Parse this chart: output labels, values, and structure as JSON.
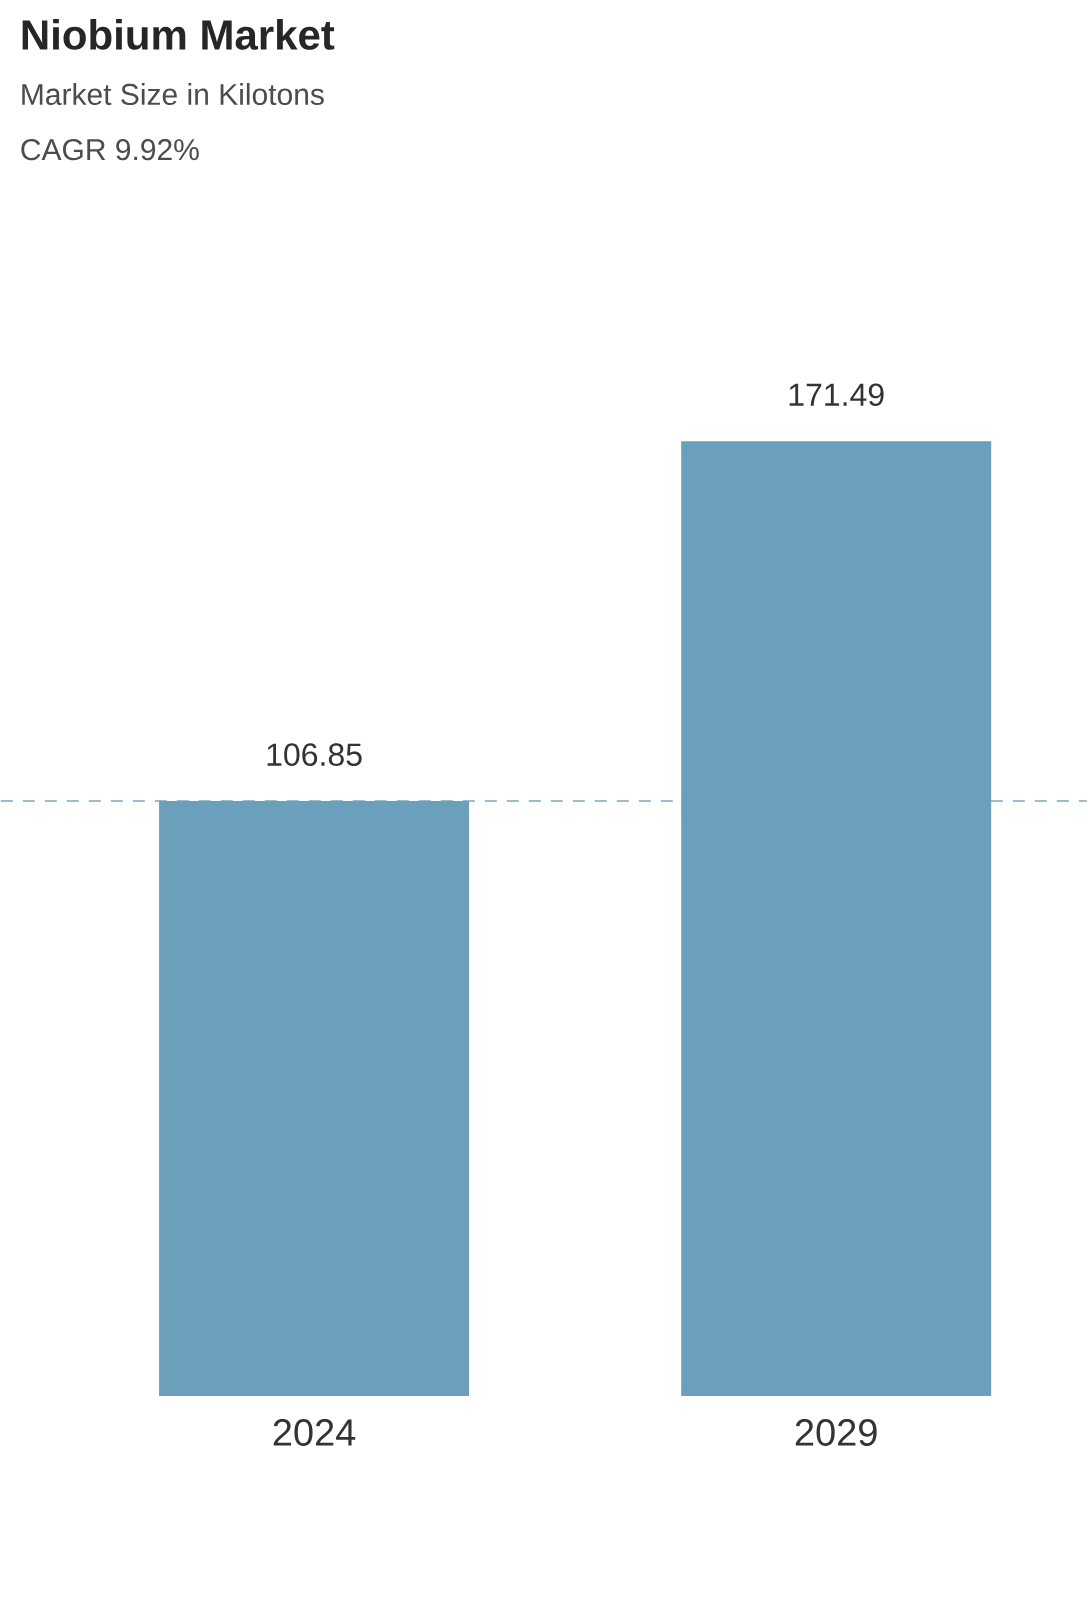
{
  "chart_data": {
    "type": "bar",
    "title": "Niobium Market",
    "subtitle": "Market Size in Kilotons",
    "annotations": [
      "CAGR 9.92%"
    ],
    "categories": [
      "2024",
      "2029"
    ],
    "values": [
      106.85,
      171.49
    ],
    "color": "#6b9fbb",
    "data_labels": true,
    "ref_lines": [
      {
        "axis": "y",
        "value": 106.85,
        "color": "#7aa6bf",
        "line_style": "dashed"
      }
    ]
  }
}
